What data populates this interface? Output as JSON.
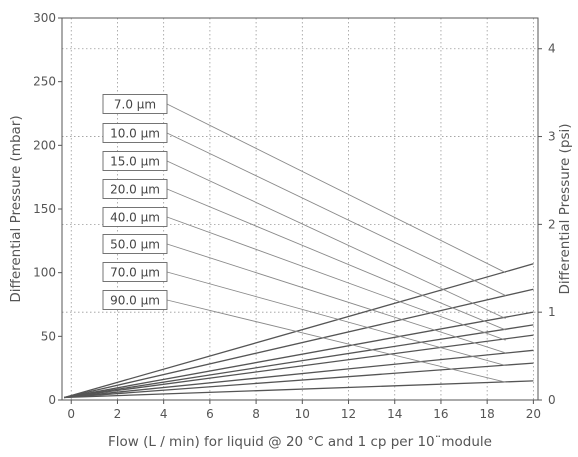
{
  "chart_data": {
    "type": "line",
    "xlabel": "Flow (L / min) for liquid @ 20 °C and 1 cp per 10¨module",
    "ylabel": "Differential Pressure (mbar)",
    "y2label": "Differential Pressure (psi)",
    "xlim": [
      -0.4,
      20.2
    ],
    "ylim": [
      0,
      300
    ],
    "y2lim": [
      0,
      4.35
    ],
    "xticks": [
      0,
      2,
      4,
      6,
      8,
      10,
      12,
      14,
      16,
      18,
      20
    ],
    "yticks": [
      0,
      50,
      100,
      150,
      200,
      250,
      300
    ],
    "y2ticks": [
      0,
      1,
      2,
      3,
      4
    ],
    "grid": true,
    "line_color": "#555555",
    "leader_color": "#8a8a8a",
    "series": [
      {
        "name": "7.0 µm",
        "x": [
          -0.3,
          20
        ],
        "y": [
          2,
          107
        ],
        "label_anchor_y": 101,
        "leader_end": [
          18.8,
          100
        ]
      },
      {
        "name": "10.0 µm",
        "x": [
          -0.3,
          20
        ],
        "y": [
          2,
          87
        ],
        "label_anchor_y": 80,
        "leader_end": [
          18.8,
          82
        ]
      },
      {
        "name": "15.0 µm",
        "x": [
          -0.3,
          20
        ],
        "y": [
          2,
          69
        ],
        "label_anchor_y": 60,
        "leader_end": [
          18.8,
          64
        ]
      },
      {
        "name": "20.0 µm",
        "x": [
          -0.3,
          20
        ],
        "y": [
          2,
          59
        ],
        "label_anchor_y": 50,
        "leader_end": [
          18.8,
          55
        ]
      },
      {
        "name": "40.0 µm",
        "x": [
          -0.3,
          20
        ],
        "y": [
          2,
          51
        ],
        "label_anchor_y": 40,
        "leader_end": [
          18.8,
          47
        ]
      },
      {
        "name": "50.0 µm",
        "x": [
          -0.3,
          20
        ],
        "y": [
          2,
          39
        ],
        "label_anchor_y": 30,
        "leader_end": [
          18.8,
          37
        ]
      },
      {
        "name": "70.0 µm",
        "x": [
          -0.3,
          20
        ],
        "y": [
          2,
          29
        ],
        "label_anchor_y": 20,
        "leader_end": [
          18.8,
          27
        ]
      },
      {
        "name": "90.0 µm",
        "x": [
          -0.3,
          20
        ],
        "y": [
          2,
          15
        ],
        "label_anchor_y": 10,
        "leader_end": [
          18.8,
          14
        ]
      }
    ]
  }
}
